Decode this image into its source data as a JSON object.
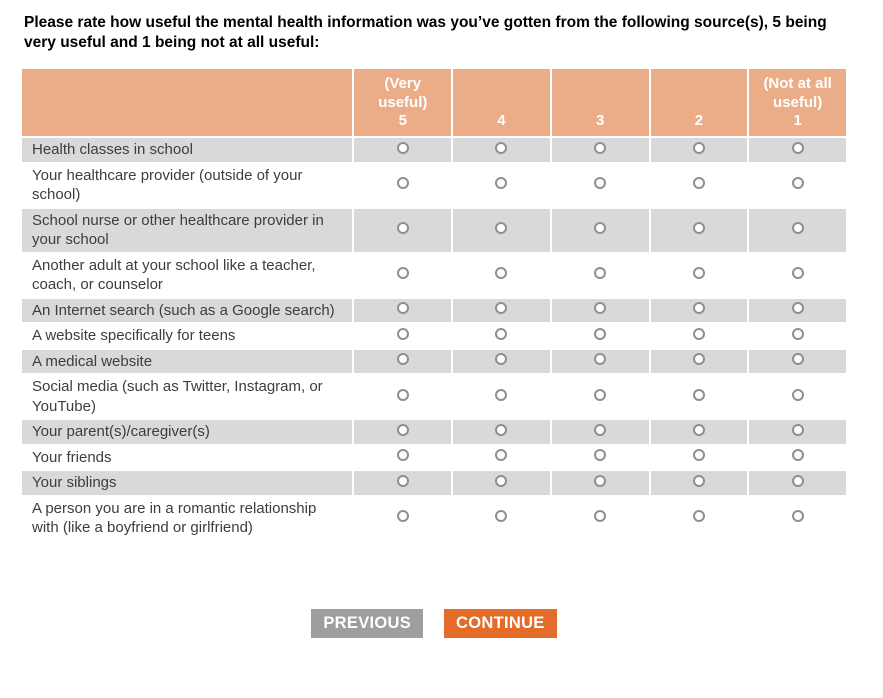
{
  "question": {
    "text": "Please rate how useful the mental health information was you’ve gotten from the following source(s), 5 being very useful and 1 being not at all useful:"
  },
  "table": {
    "columns": [
      {
        "label": "(Very useful)",
        "value": "5"
      },
      {
        "label": "",
        "value": "4"
      },
      {
        "label": "",
        "value": "3"
      },
      {
        "label": "",
        "value": "2"
      },
      {
        "label": "(Not at all useful)",
        "value": "1"
      }
    ],
    "rows": [
      {
        "label": "Health classes in school"
      },
      {
        "label": "Your healthcare provider (outside of your school)"
      },
      {
        "label": "School nurse or other healthcare provider in your school"
      },
      {
        "label": "Another adult at your school like a teacher, coach, or counselor"
      },
      {
        "label": "An Internet search (such as a Google search)"
      },
      {
        "label": "A website specifically for teens"
      },
      {
        "label": "A medical website"
      },
      {
        "label": "Social media (such as Twitter, Instagram, or YouTube)"
      },
      {
        "label": "Your parent(s)/caregiver(s)"
      },
      {
        "label": "Your friends"
      },
      {
        "label": "Your siblings"
      },
      {
        "label": "A person you are in a romantic relationship with (like a boyfriend or girlfriend)"
      }
    ]
  },
  "buttons": {
    "previous": "PREVIOUS",
    "continue": "CONTINUE"
  },
  "colors": {
    "header_bg": "#EAAD87",
    "header_text": "#FFFFFF",
    "row_alt_bg": "#D9D9D9",
    "row_bg": "#FFFFFF",
    "label_text": "#3D3D3D",
    "previous_bg": "#9E9E9E",
    "continue_bg": "#E36C28"
  }
}
